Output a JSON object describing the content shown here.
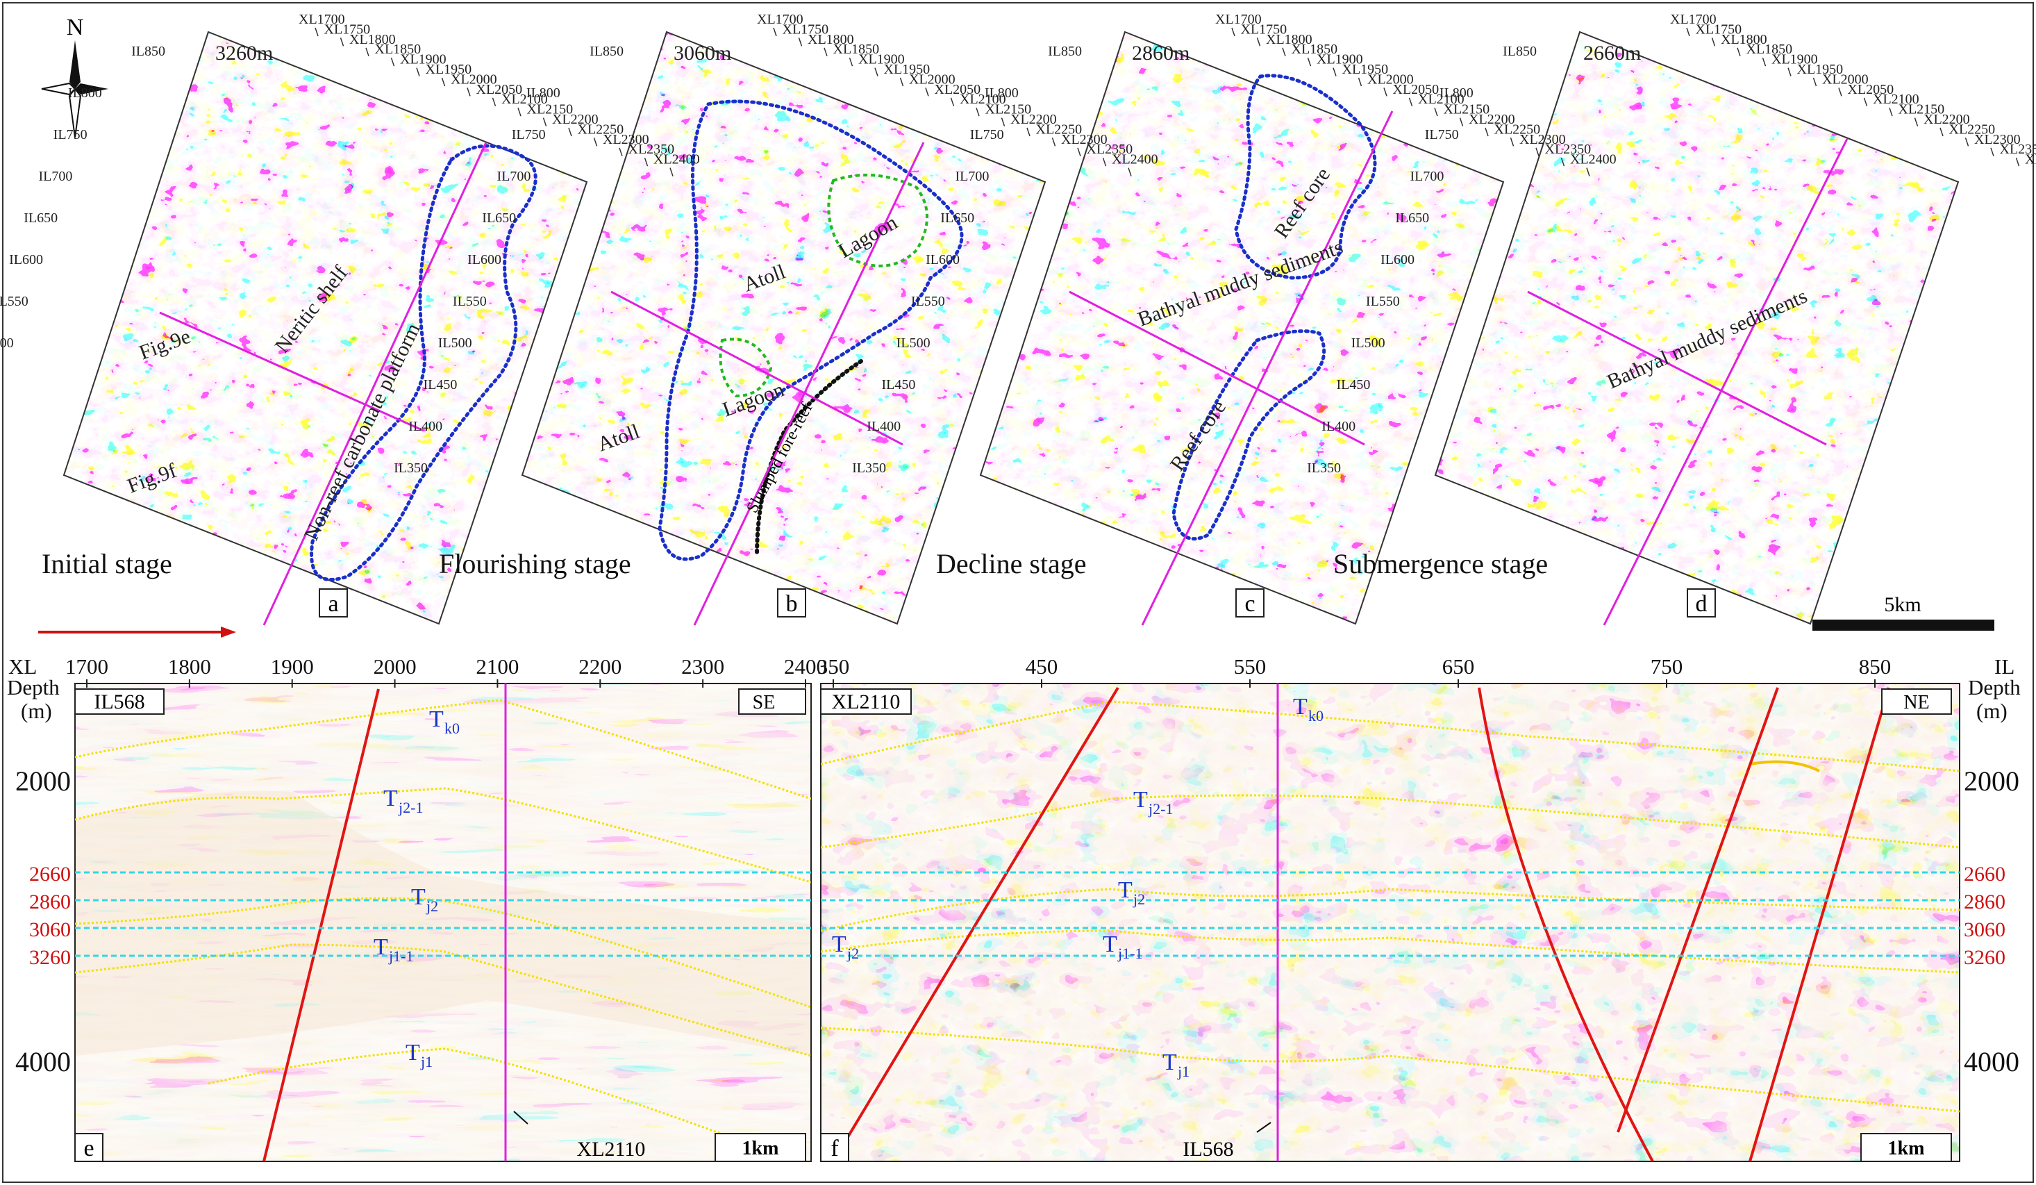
{
  "compass_label": "N",
  "maps": [
    {
      "id": "a",
      "depth": "3260m",
      "stage": "Initial stage",
      "zones": [
        "Neritic shelf",
        "Non-reef carbonate platform"
      ],
      "refs": [
        "Fig.9e",
        "Fig.9f"
      ]
    },
    {
      "id": "b",
      "depth": "3060m",
      "stage": "Flourishing stage",
      "zones": [
        "Atoll",
        "Lagoon",
        "Lagoon",
        "Atoll",
        "Slumped fore-reef"
      ],
      "refs": []
    },
    {
      "id": "c",
      "depth": "2860m",
      "stage": "Decline stage",
      "zones": [
        "Reef core",
        "Bathyal muddy sediments",
        "Reef core"
      ],
      "refs": []
    },
    {
      "id": "d",
      "depth": "2660m",
      "stage": "Submergence stage",
      "zones": [
        "Bathyal muddy sediments"
      ],
      "refs": []
    }
  ],
  "xl_labels": [
    "XL1700",
    "XL1750",
    "XL1800",
    "XL1850",
    "XL1900",
    "XL1950",
    "XL2000",
    "XL2050",
    "XL2100",
    "XL2150",
    "XL2200",
    "XL2250",
    "XL2300",
    "XL2350",
    "XL2400"
  ],
  "il_labels": [
    "IL850",
    "IL800",
    "IL750",
    "IL700",
    "IL650",
    "IL600",
    "IL550",
    "IL500",
    "IL450",
    "IL400",
    "IL350"
  ],
  "map_scale": "5km",
  "section_e": {
    "id": "e",
    "line": "IL568",
    "direction": "SE",
    "axis_name": "XL",
    "depth_label": "Depth",
    "depth_unit": "(m)",
    "x_ticks": [
      "1700",
      "1800",
      "1900",
      "2000",
      "2100",
      "2200",
      "2300",
      "2400"
    ],
    "depth_ticks": [
      "2000",
      "4000"
    ],
    "slice_depths": [
      "2660",
      "2860",
      "3060",
      "3260"
    ],
    "horizons": [
      {
        "main": "T",
        "sub": "k0"
      },
      {
        "main": "T",
        "sub": "j2-1"
      },
      {
        "main": "T",
        "sub": "j2"
      },
      {
        "main": "T",
        "sub": "j1-1"
      },
      {
        "main": "T",
        "sub": "j1"
      }
    ],
    "cross_ref": "XL2110",
    "scale": "1km"
  },
  "section_f": {
    "id": "f",
    "line": "XL2110",
    "direction": "NE",
    "axis_name": "IL",
    "depth_label": "Depth",
    "depth_unit": "(m)",
    "x_ticks": [
      "350",
      "450",
      "550",
      "650",
      "750",
      "850"
    ],
    "depth_ticks": [
      "2000",
      "4000"
    ],
    "slice_depths": [
      "2660",
      "2860",
      "3060",
      "3260"
    ],
    "horizons": [
      {
        "main": "T",
        "sub": "k0"
      },
      {
        "main": "T",
        "sub": "j2-1"
      },
      {
        "main": "T",
        "sub": "j2"
      },
      {
        "main": "T",
        "sub": "j2"
      },
      {
        "main": "T",
        "sub": "j1-1"
      },
      {
        "main": "T",
        "sub": "j1"
      }
    ],
    "cross_ref": "IL568",
    "scale": "1km"
  },
  "colors": {
    "positive": "#e01515",
    "negative": "#111111",
    "fault": "#e01515",
    "outline": "#1a2fc9",
    "lagoon": "#22b822",
    "section_line": "#e020e0",
    "slice_line": "#33d6e6",
    "horizon": "#f2e100",
    "depth_red": "#d01010"
  }
}
